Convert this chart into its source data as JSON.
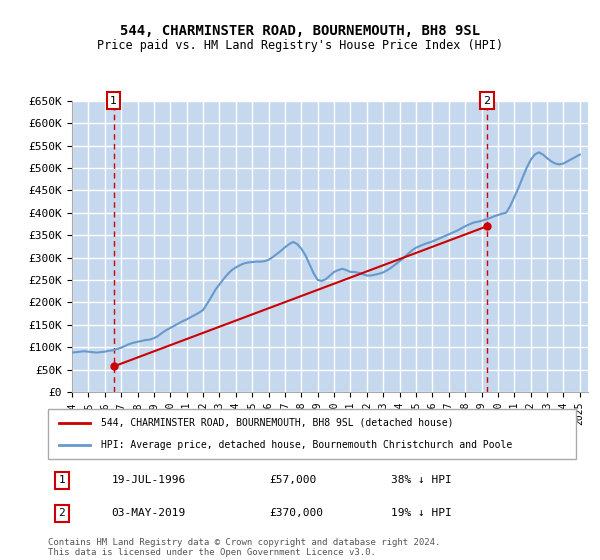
{
  "title": "544, CHARMINSTER ROAD, BOURNEMOUTH, BH8 9SL",
  "subtitle": "Price paid vs. HM Land Registry's House Price Index (HPI)",
  "ylabel": "",
  "ylim": [
    0,
    650000
  ],
  "yticks": [
    0,
    50000,
    100000,
    150000,
    200000,
    250000,
    300000,
    350000,
    400000,
    450000,
    500000,
    550000,
    600000,
    650000
  ],
  "ytick_labels": [
    "£0",
    "£50K",
    "£100K",
    "£150K",
    "£200K",
    "£250K",
    "£300K",
    "£350K",
    "£400K",
    "£450K",
    "£500K",
    "£550K",
    "£600K",
    "£650K"
  ],
  "xlim_start": 1994.0,
  "xlim_end": 2025.5,
  "background_color": "#ffffff",
  "plot_bg_color": "#dce9f5",
  "hatch_color": "#c5d8ee",
  "grid_color": "#ffffff",
  "transaction1": {
    "date": 1996.54,
    "price": 57000,
    "label": "1",
    "date_str": "19-JUL-1996",
    "price_str": "£57,000",
    "pct_str": "38% ↓ HPI"
  },
  "transaction2": {
    "date": 2019.34,
    "price": 370000,
    "label": "2",
    "date_str": "03-MAY-2019",
    "price_str": "£370,000",
    "pct_str": "19% ↓ HPI"
  },
  "legend_line1": "544, CHARMINSTER ROAD, BOURNEMOUTH, BH8 9SL (detached house)",
  "legend_line2": "HPI: Average price, detached house, Bournemouth Christchurch and Poole",
  "footer": "Contains HM Land Registry data © Crown copyright and database right 2024.\nThis data is licensed under the Open Government Licence v3.0.",
  "red_line_color": "#cc0000",
  "blue_line_color": "#6699cc",
  "dashed_color": "#cc0000",
  "marker_box_color": "#cc0000",
  "hpi_data": {
    "years": [
      1994.0,
      1994.25,
      1994.5,
      1994.75,
      1995.0,
      1995.25,
      1995.5,
      1995.75,
      1996.0,
      1996.25,
      1996.5,
      1996.75,
      1997.0,
      1997.25,
      1997.5,
      1997.75,
      1998.0,
      1998.25,
      1998.5,
      1998.75,
      1999.0,
      1999.25,
      1999.5,
      1999.75,
      2000.0,
      2000.25,
      2000.5,
      2000.75,
      2001.0,
      2001.25,
      2001.5,
      2001.75,
      2002.0,
      2002.25,
      2002.5,
      2002.75,
      2003.0,
      2003.25,
      2003.5,
      2003.75,
      2004.0,
      2004.25,
      2004.5,
      2004.75,
      2005.0,
      2005.25,
      2005.5,
      2005.75,
      2006.0,
      2006.25,
      2006.5,
      2006.75,
      2007.0,
      2007.25,
      2007.5,
      2007.75,
      2008.0,
      2008.25,
      2008.5,
      2008.75,
      2009.0,
      2009.25,
      2009.5,
      2009.75,
      2010.0,
      2010.25,
      2010.5,
      2010.75,
      2011.0,
      2011.25,
      2011.5,
      2011.75,
      2012.0,
      2012.25,
      2012.5,
      2012.75,
      2013.0,
      2013.25,
      2013.5,
      2013.75,
      2014.0,
      2014.25,
      2014.5,
      2014.75,
      2015.0,
      2015.25,
      2015.5,
      2015.75,
      2016.0,
      2016.25,
      2016.5,
      2016.75,
      2017.0,
      2017.25,
      2017.5,
      2017.75,
      2018.0,
      2018.25,
      2018.5,
      2018.75,
      2019.0,
      2019.25,
      2019.5,
      2019.75,
      2020.0,
      2020.25,
      2020.5,
      2020.75,
      2021.0,
      2021.25,
      2021.5,
      2021.75,
      2022.0,
      2022.25,
      2022.5,
      2022.75,
      2023.0,
      2023.25,
      2023.5,
      2023.75,
      2024.0,
      2024.25,
      2024.5,
      2024.75,
      2025.0
    ],
    "values": [
      88000,
      89000,
      90000,
      91000,
      90000,
      89000,
      88000,
      89000,
      90000,
      92000,
      93000,
      96000,
      99000,
      103000,
      107000,
      110000,
      112000,
      114000,
      116000,
      117000,
      120000,
      125000,
      132000,
      138000,
      143000,
      148000,
      153000,
      158000,
      162000,
      167000,
      172000,
      177000,
      183000,
      197000,
      212000,
      228000,
      240000,
      252000,
      263000,
      272000,
      278000,
      283000,
      287000,
      289000,
      290000,
      291000,
      291000,
      292000,
      295000,
      301000,
      308000,
      315000,
      323000,
      330000,
      335000,
      330000,
      320000,
      305000,
      285000,
      265000,
      250000,
      248000,
      252000,
      260000,
      268000,
      272000,
      275000,
      272000,
      268000,
      268000,
      266000,
      263000,
      260000,
      260000,
      262000,
      264000,
      267000,
      272000,
      278000,
      285000,
      292000,
      300000,
      308000,
      316000,
      322000,
      326000,
      330000,
      333000,
      336000,
      340000,
      344000,
      348000,
      352000,
      356000,
      360000,
      365000,
      370000,
      374000,
      378000,
      380000,
      382000,
      385000,
      388000,
      392000,
      395000,
      398000,
      400000,
      415000,
      435000,
      455000,
      478000,
      500000,
      518000,
      530000,
      535000,
      530000,
      522000,
      515000,
      510000,
      508000,
      510000,
      515000,
      520000,
      525000,
      530000
    ]
  },
  "price_paid_data": {
    "dates": [
      1996.54,
      2019.34
    ],
    "prices": [
      57000,
      370000
    ]
  }
}
